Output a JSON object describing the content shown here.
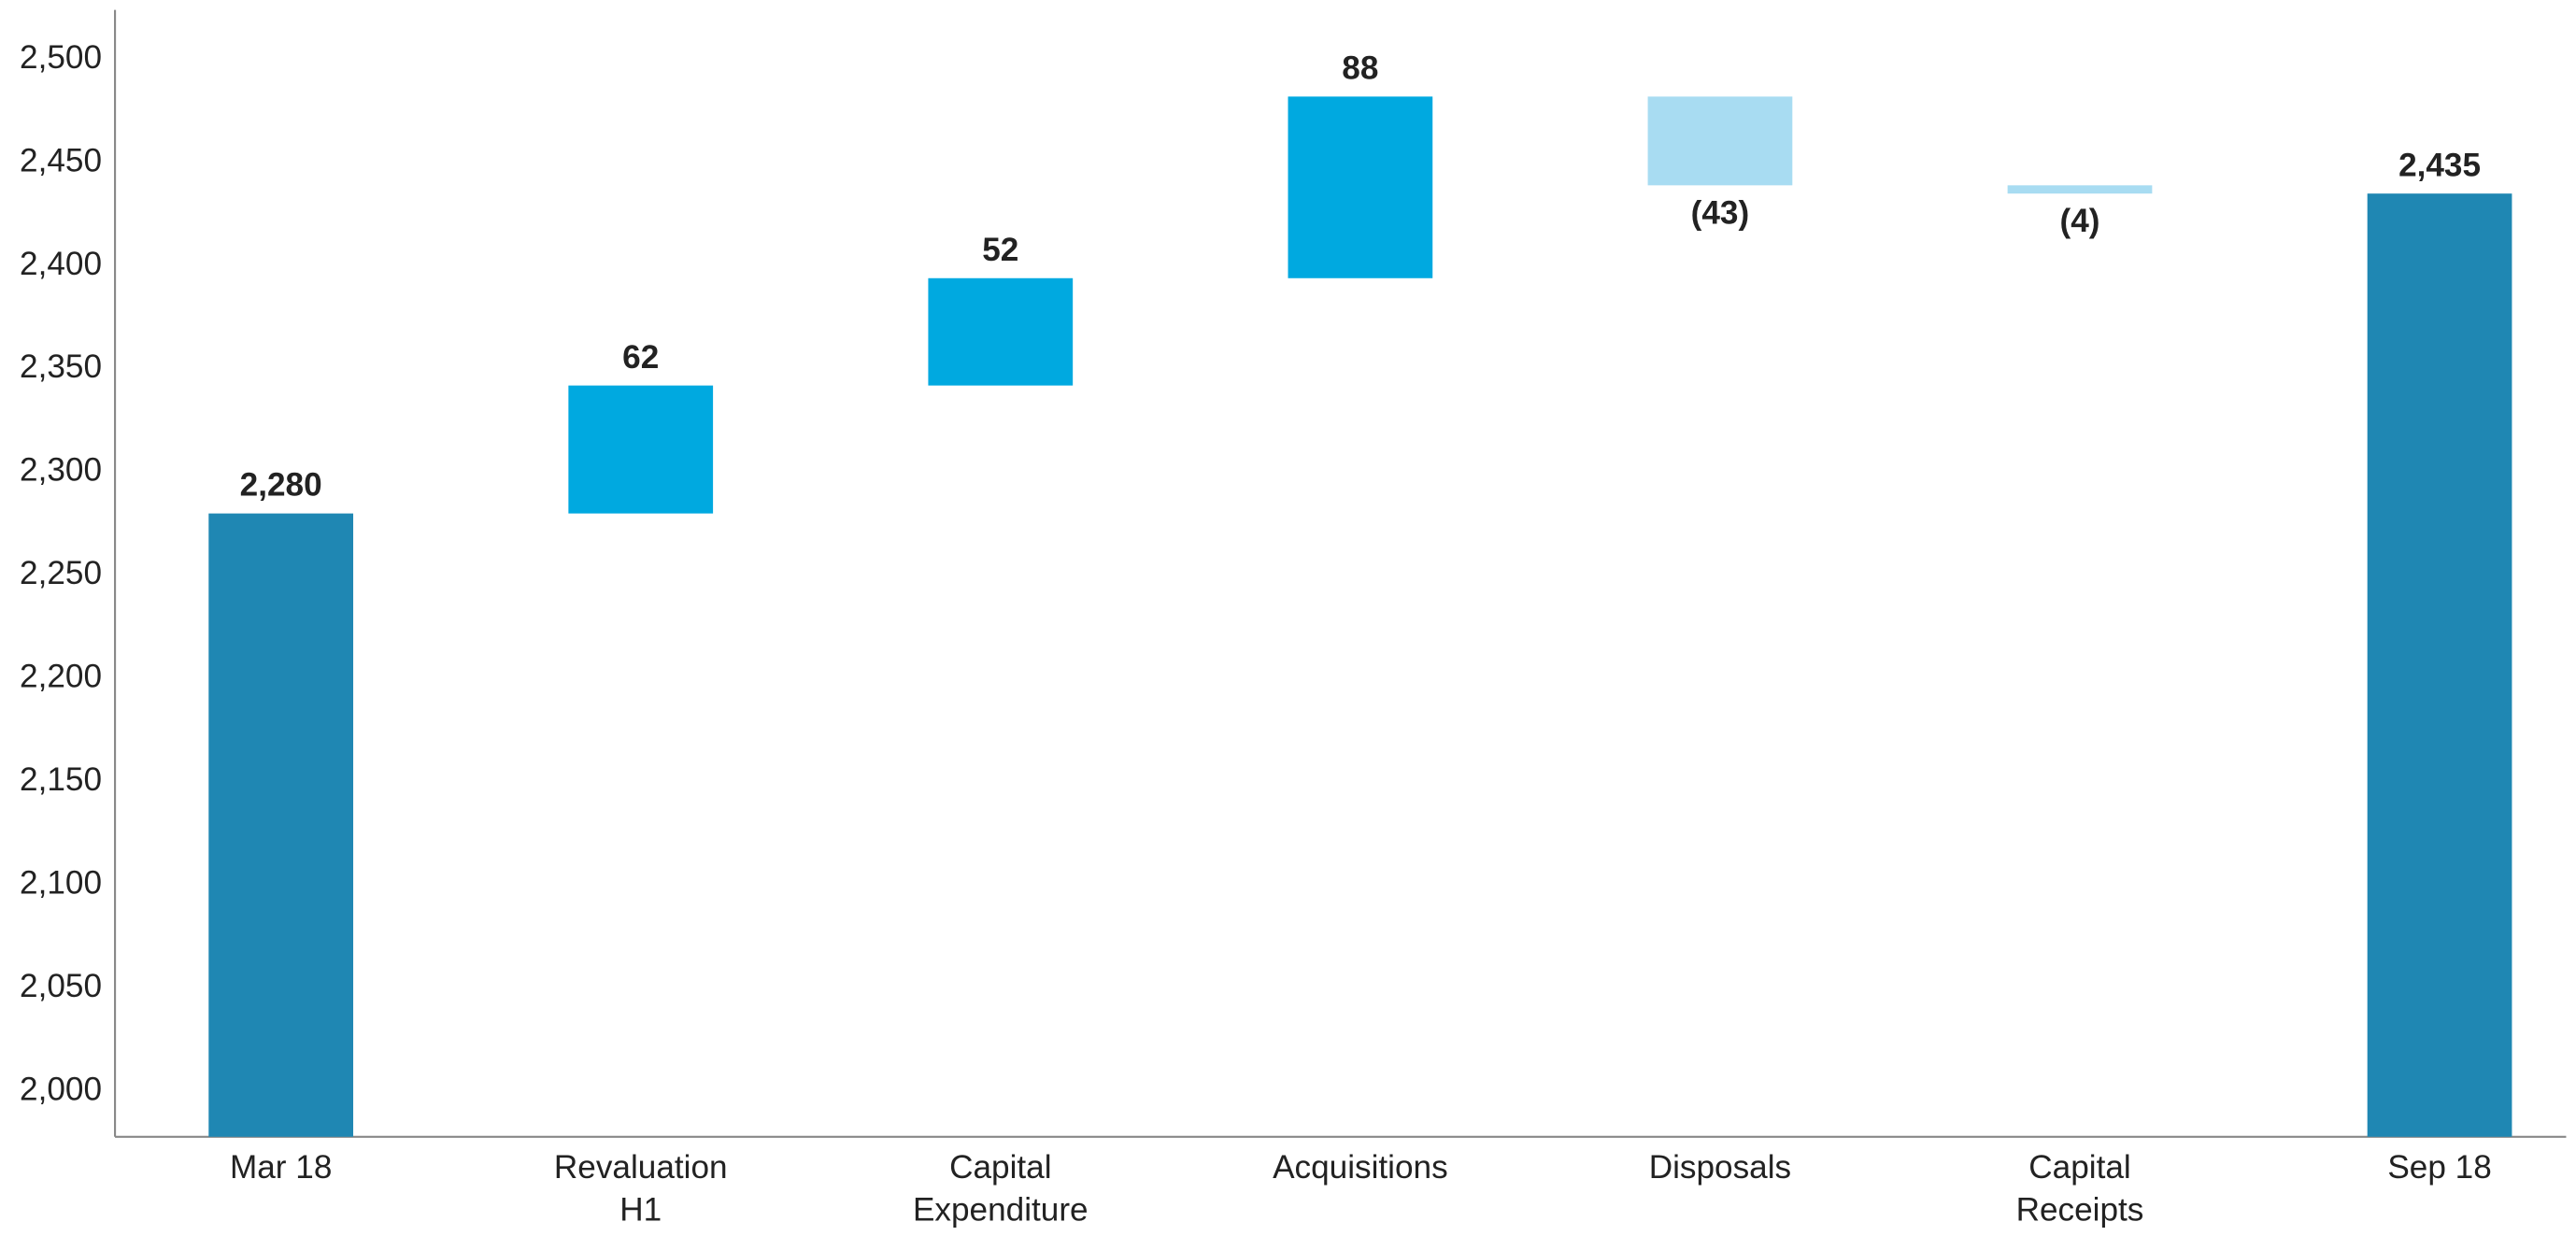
{
  "chart_data": {
    "type": "waterfall",
    "categories": [
      "Mar 18",
      "Revaluation\nH1",
      "Capital\nExpenditure",
      "Acquisitions",
      "Disposals",
      "Capital\nReceipts",
      "Sep 18"
    ],
    "values": [
      2280,
      62,
      52,
      88,
      -43,
      -4,
      2435
    ],
    "value_labels": [
      "2,280",
      "62",
      "52",
      "88",
      "(43)",
      "(4)",
      "2,435"
    ],
    "measure": [
      "total",
      "relative",
      "relative",
      "relative",
      "relative",
      "relative",
      "total"
    ],
    "colors": {
      "total": "#1f87b3",
      "increase": "#00a9e0",
      "decrease": "#a8dcf2"
    },
    "ylim": [
      1978,
      2524
    ],
    "yticks": [
      {
        "value": 2000,
        "label": "2,000"
      },
      {
        "value": 2050,
        "label": "2,050"
      },
      {
        "value": 2100,
        "label": "2,100"
      },
      {
        "value": 2150,
        "label": "2,150"
      },
      {
        "value": 2200,
        "label": "2,200"
      },
      {
        "value": 2250,
        "label": "2,250"
      },
      {
        "value": 2300,
        "label": "2,300"
      },
      {
        "value": 2350,
        "label": "2,350"
      },
      {
        "value": 2400,
        "label": "2,400"
      },
      {
        "value": 2450,
        "label": "2,450"
      },
      {
        "value": 2500,
        "label": "2,500"
      }
    ],
    "grid": false
  }
}
